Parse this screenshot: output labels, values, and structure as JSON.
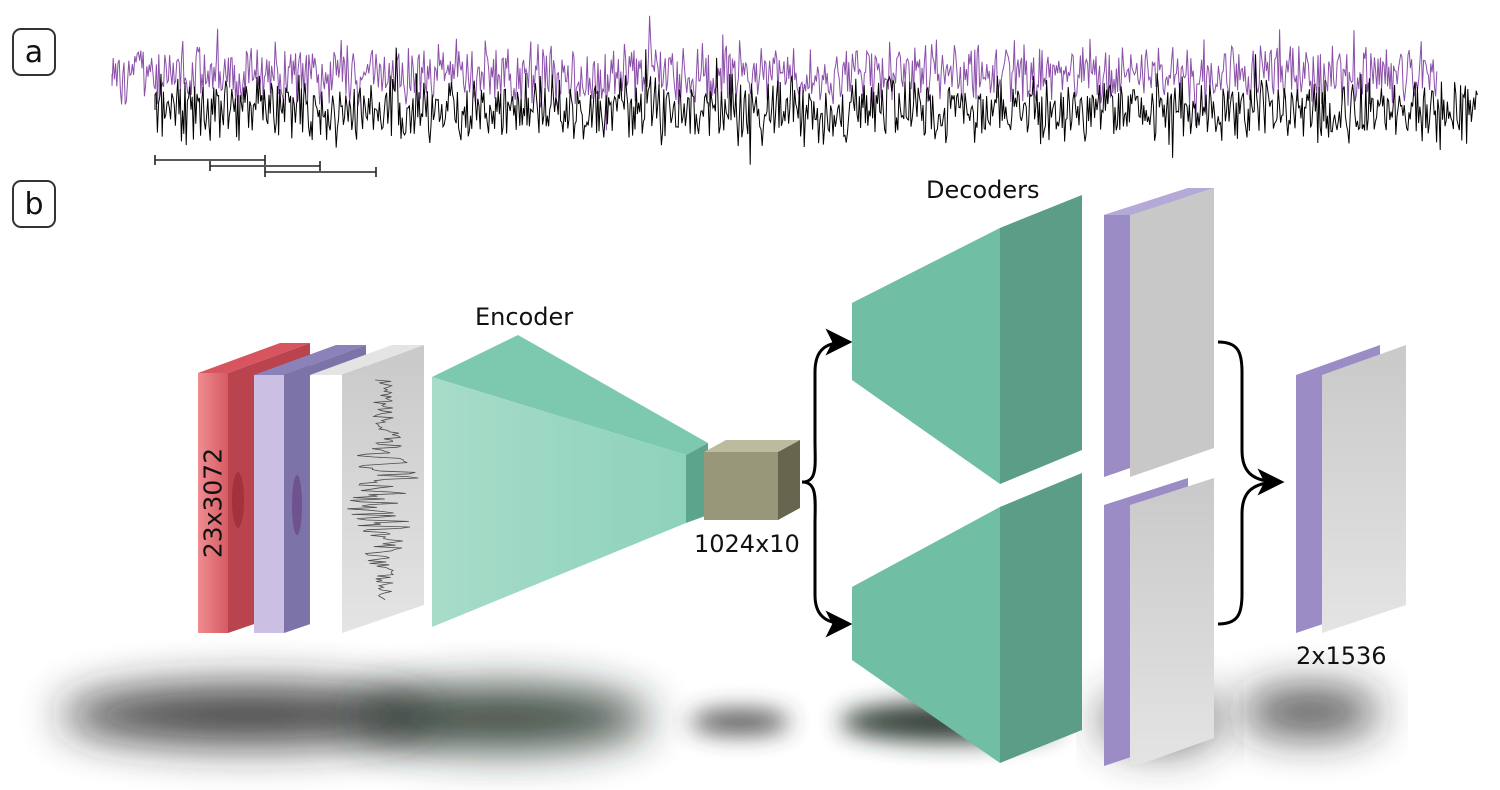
{
  "panels": {
    "a": "a",
    "b": "b"
  },
  "labels": {
    "input_dims": "23x3072",
    "encoder": "Encoder",
    "latent_dims": "1024x10",
    "decoders": "Decoders",
    "output_dims": "2x1536"
  },
  "colors": {
    "signal_purple": "#8a4fa8",
    "signal_black": "#000000",
    "red_channel": "#e56b70",
    "purple_channel": "#b7a9d8",
    "teal": "#6fc3a8",
    "latent": "#98977a",
    "gray_sheet": "#cfcfcf"
  }
}
